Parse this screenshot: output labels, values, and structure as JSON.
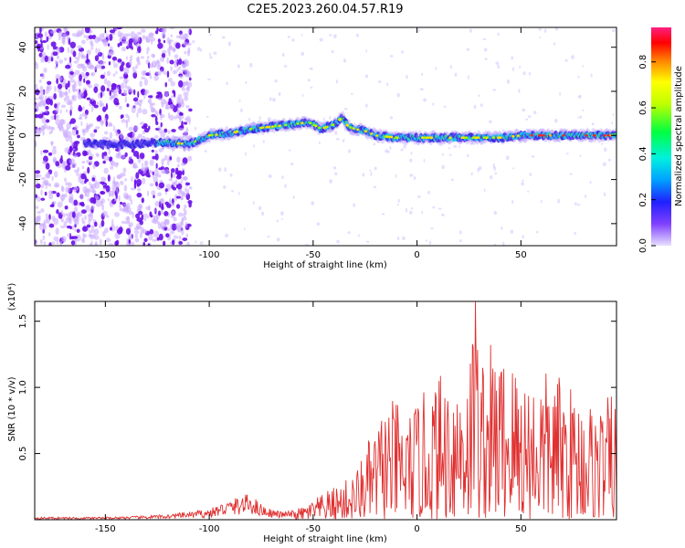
{
  "title": "C2E5.2023.260.04.57.R19",
  "chart_data": [
    {
      "type": "heatmap",
      "xlabel": "Height of straight line (km)",
      "ylabel": "Frequency (Hz)",
      "xlim": [
        -184,
        96
      ],
      "ylim": [
        -50,
        49
      ],
      "xticks": [
        -150,
        -100,
        -50,
        0,
        50
      ],
      "yticks": [
        -40,
        -20,
        0,
        20,
        40
      ],
      "colorbar": {
        "label": "Normalized spectral amplitude",
        "range": [
          0.0,
          0.95
        ],
        "ticks": [
          0.0,
          0.2,
          0.4,
          0.6,
          0.8
        ]
      },
      "ridge": {
        "x": [
          -135,
          -120,
          -110,
          -100,
          -90,
          -80,
          -70,
          -60,
          -52,
          -46,
          -40,
          -36,
          -33,
          -30,
          -25,
          -20,
          -10,
          0,
          10,
          20,
          30,
          40,
          50,
          60,
          70,
          80,
          90,
          96
        ],
        "y": [
          -4,
          -3,
          -4,
          0,
          1,
          3,
          4,
          5,
          6,
          3,
          5,
          8,
          4,
          3,
          2,
          0,
          -1,
          -1,
          -1,
          -1,
          -1,
          -1,
          0,
          0,
          0,
          0,
          0,
          0
        ]
      }
    },
    {
      "type": "line",
      "xlabel": "Height of straight line (km)",
      "ylabel": "SNR (10 * v/v)",
      "y_scale_note": "(x10⁴)",
      "xlim": [
        -184,
        96
      ],
      "ylim": [
        0,
        1.65
      ],
      "xticks": [
        -150,
        -100,
        -50,
        0,
        50
      ],
      "yticks": [
        0.5,
        1.0,
        1.5
      ],
      "series": [
        {
          "color": "#e03030",
          "envelope_x": [
            -184,
            -150,
            -130,
            -120,
            -110,
            -100,
            -95,
            -90,
            -85,
            -80,
            -75,
            -70,
            -65,
            -60,
            -55,
            -50,
            -45,
            -40,
            -35,
            -30,
            -25,
            -20,
            -15,
            -10,
            -5,
            0,
            5,
            10,
            15,
            20,
            25,
            28,
            30,
            35,
            40,
            45,
            50,
            55,
            60,
            65,
            70,
            75,
            80,
            85,
            90,
            96
          ],
          "envelope_y": [
            0.02,
            0.02,
            0.03,
            0.04,
            0.06,
            0.08,
            0.12,
            0.15,
            0.18,
            0.2,
            0.12,
            0.08,
            0.06,
            0.07,
            0.1,
            0.15,
            0.2,
            0.25,
            0.3,
            0.35,
            0.55,
            0.7,
            0.9,
            0.9,
            0.8,
            0.9,
            1.0,
            1.1,
            1.15,
            1.2,
            1.3,
            1.65,
            1.3,
            1.35,
            1.3,
            1.25,
            1.2,
            1.1,
            1.15,
            1.1,
            1.1,
            1.0,
            0.95,
            0.9,
            0.9,
            1.0
          ]
        }
      ]
    }
  ]
}
